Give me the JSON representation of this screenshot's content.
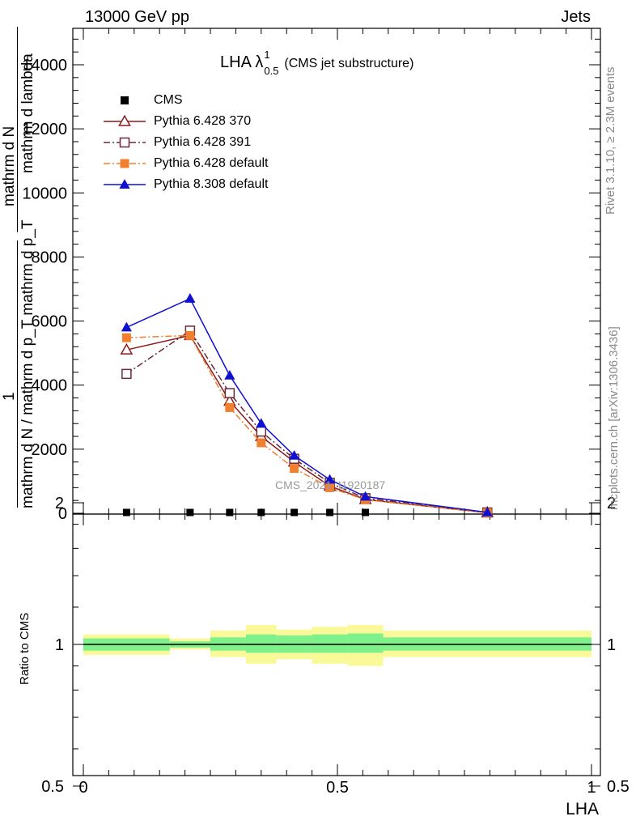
{
  "header": {
    "left": "13000 GeV pp",
    "right": "Jets"
  },
  "title": {
    "main": "LHA λ",
    "sup": "1",
    "sub": "0.5",
    "suffix": "(CMS jet substructure)"
  },
  "side_labels": {
    "rivet": "Rivet 3.1.10, ≥ 2.3M events",
    "mcplots": "mcplots.cern.ch [arXiv:1306.3436]"
  },
  "watermark": "CMS_2021_I1920187",
  "y_axis_main": {
    "top_label_line1": "mathrm d lambda",
    "top_label_line2": "mathrm d N",
    "numerator": "1",
    "denominator": "mathrm d N / mathrm d p_T mathrm d p_T"
  },
  "y_axis_ratio": {
    "label": "Ratio to CMS"
  },
  "x_axis": {
    "label": "LHA"
  },
  "colors": {
    "cms": "#000000",
    "p370": "#8b1a1a",
    "p391": "#6b2a3a",
    "pdef": "#f07f30",
    "p8": "#1010d0",
    "band_inner": "#7ef18a",
    "band_outer": "#f9f99a"
  },
  "chart_data": [
    {
      "type": "line",
      "title": "LHA λ^1_0.5 (CMS jet substructure)",
      "xlabel": "",
      "ylabel": "1/(mathrm d N / mathrm d p_T mathrm d p_T) · mathrm d N / mathrm d lambda",
      "xlim": [
        0,
        1
      ],
      "ylim": [
        0,
        14000
      ],
      "yticks": [
        0,
        2000,
        4000,
        6000,
        8000,
        10000,
        12000,
        14000
      ],
      "legend_position": "top-left",
      "series": [
        {
          "name": "CMS",
          "marker": "filled-square",
          "color": "#000000",
          "x": [
            0.085,
            0.21,
            0.288,
            0.35,
            0.415,
            0.485,
            0.555,
            0.795
          ],
          "y": [
            0,
            0,
            0,
            0,
            0,
            0,
            0,
            0
          ]
        },
        {
          "name": "Pythia 6.428 370",
          "marker": "open-triangle",
          "line": "solid",
          "color": "#8b1a1a",
          "x": [
            0.085,
            0.21,
            0.288,
            0.35,
            0.415,
            0.485,
            0.555,
            0.795
          ],
          "y": [
            5100,
            5550,
            3500,
            2400,
            1600,
            850,
            430,
            20
          ]
        },
        {
          "name": "Pythia 6.428 391",
          "marker": "open-square",
          "line": "dash-dot",
          "color": "#6b2a3a",
          "x": [
            0.085,
            0.21,
            0.288,
            0.35,
            0.415,
            0.485,
            0.555,
            0.795
          ],
          "y": [
            4350,
            5700,
            3750,
            2550,
            1700,
            950,
            470,
            25
          ]
        },
        {
          "name": "Pythia 6.428 default",
          "marker": "filled-square",
          "line": "dash-dot",
          "color": "#f07f30",
          "x": [
            0.085,
            0.21,
            0.288,
            0.35,
            0.415,
            0.485,
            0.555,
            0.795
          ],
          "y": [
            5480,
            5550,
            3300,
            2200,
            1400,
            800,
            420,
            15
          ]
        },
        {
          "name": "Pythia 8.308 default",
          "marker": "filled-triangle",
          "line": "solid",
          "color": "#1010d0",
          "x": [
            0.085,
            0.21,
            0.288,
            0.35,
            0.415,
            0.485,
            0.555,
            0.795
          ],
          "y": [
            5800,
            6700,
            4300,
            2800,
            1800,
            1050,
            520,
            30
          ]
        }
      ]
    },
    {
      "type": "area",
      "title": "",
      "xlabel": "LHA",
      "ylabel": "Ratio to CMS",
      "xlim": [
        0,
        1
      ],
      "ylim": [
        0.4,
        2.4
      ],
      "log_y": true,
      "yticks": [
        0.5,
        1,
        2
      ],
      "xticks": [
        0,
        0.5,
        1
      ],
      "bins": [
        {
          "x0": 0.0,
          "x1": 0.17,
          "inner": [
            0.97,
            1.03
          ],
          "outer": [
            0.95,
            1.05
          ]
        },
        {
          "x0": 0.17,
          "x1": 0.25,
          "inner": [
            0.985,
            1.015
          ],
          "outer": [
            0.975,
            1.03
          ]
        },
        {
          "x0": 0.25,
          "x1": 0.32,
          "inner": [
            0.97,
            1.035
          ],
          "outer": [
            0.94,
            1.07
          ]
        },
        {
          "x0": 0.32,
          "x1": 0.38,
          "inner": [
            0.96,
            1.05
          ],
          "outer": [
            0.91,
            1.1
          ]
        },
        {
          "x0": 0.38,
          "x1": 0.45,
          "inner": [
            0.96,
            1.045
          ],
          "outer": [
            0.93,
            1.075
          ]
        },
        {
          "x0": 0.45,
          "x1": 0.52,
          "inner": [
            0.96,
            1.05
          ],
          "outer": [
            0.91,
            1.09
          ]
        },
        {
          "x0": 0.52,
          "x1": 0.59,
          "inner": [
            0.96,
            1.055
          ],
          "outer": [
            0.9,
            1.1
          ]
        },
        {
          "x0": 0.59,
          "x1": 1.0,
          "inner": [
            0.97,
            1.035
          ],
          "outer": [
            0.94,
            1.07
          ]
        }
      ],
      "reference": 1
    }
  ]
}
